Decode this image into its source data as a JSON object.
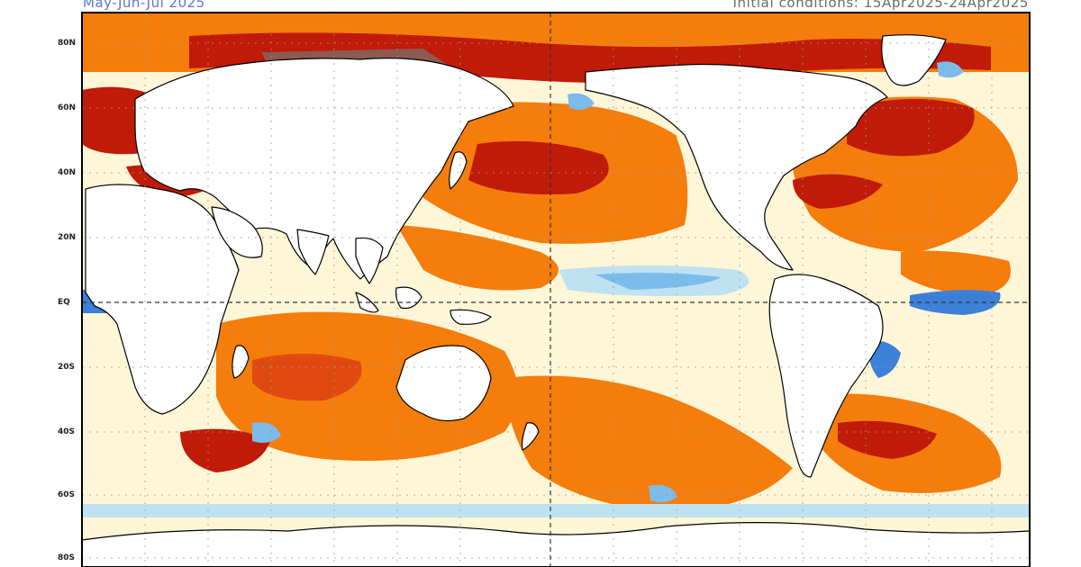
{
  "header": {
    "season_title": "May-Jun-Jul 2025",
    "initial_conditions": "Initial conditions: 15Apr2025-24Apr2025"
  },
  "latitude_labels": [
    "80N",
    "60N",
    "40N",
    "20N",
    "EQ",
    "20S",
    "40S",
    "60S",
    "80S"
  ],
  "colors": {
    "land": "#ffffff",
    "coast": "#000000",
    "grid": "#999999",
    "equator": "#333333",
    "warm_extreme": "#8c5a50",
    "warm_strong": "#c01a08",
    "warm_moderate": "#e04a10",
    "warm_mild": "#f57d0c",
    "warm_slight": "#ffd580",
    "cool_slight": "#bfe2f2",
    "cool_moderate": "#7cbcea",
    "cool_strong": "#3c80d8"
  }
}
